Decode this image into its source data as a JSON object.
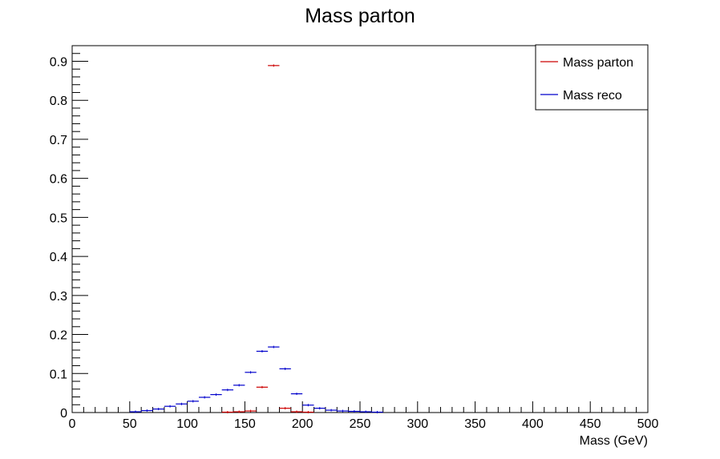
{
  "chart_data": {
    "type": "line",
    "title": "Mass parton",
    "xlabel": "Mass (GeV)",
    "ylabel": "",
    "xlim": [
      0,
      500
    ],
    "ylim": [
      0,
      0.94
    ],
    "x_ticks": [
      "0",
      "50",
      "100",
      "150",
      "200",
      "250",
      "300",
      "350",
      "400",
      "450",
      "500"
    ],
    "y_ticks": [
      "0",
      "0.1",
      "0.2",
      "0.3",
      "0.4",
      "0.5",
      "0.6",
      "0.7",
      "0.8",
      "0.9"
    ],
    "x_tick_values": [
      0,
      50,
      100,
      150,
      200,
      250,
      300,
      350,
      400,
      450,
      500
    ],
    "y_tick_values": [
      0,
      0.1,
      0.2,
      0.3,
      0.4,
      0.5,
      0.6,
      0.7,
      0.8,
      0.9
    ],
    "bin_width": 10,
    "grid": false,
    "legend_position": "top-right",
    "series": [
      {
        "name": "Mass parton",
        "color": "#cc0000",
        "bins": [
          [
            130,
            0.001
          ],
          [
            140,
            0.002
          ],
          [
            150,
            0.004
          ],
          [
            160,
            0.065
          ],
          [
            170,
            0.889
          ],
          [
            180,
            0.011
          ],
          [
            190,
            0.002
          ],
          [
            200,
            0.001
          ]
        ]
      },
      {
        "name": "Mass reco",
        "color": "#0000cc",
        "bins": [
          [
            50,
            0.002
          ],
          [
            60,
            0.005
          ],
          [
            70,
            0.009
          ],
          [
            80,
            0.016
          ],
          [
            90,
            0.022
          ],
          [
            100,
            0.029
          ],
          [
            110,
            0.039
          ],
          [
            120,
            0.046
          ],
          [
            130,
            0.058
          ],
          [
            140,
            0.07
          ],
          [
            150,
            0.103
          ],
          [
            160,
            0.157
          ],
          [
            170,
            0.168
          ],
          [
            180,
            0.112
          ],
          [
            190,
            0.048
          ],
          [
            200,
            0.019
          ],
          [
            210,
            0.011
          ],
          [
            220,
            0.006
          ],
          [
            230,
            0.004
          ],
          [
            240,
            0.003
          ],
          [
            250,
            0.002
          ],
          [
            260,
            0.001
          ]
        ]
      }
    ]
  }
}
